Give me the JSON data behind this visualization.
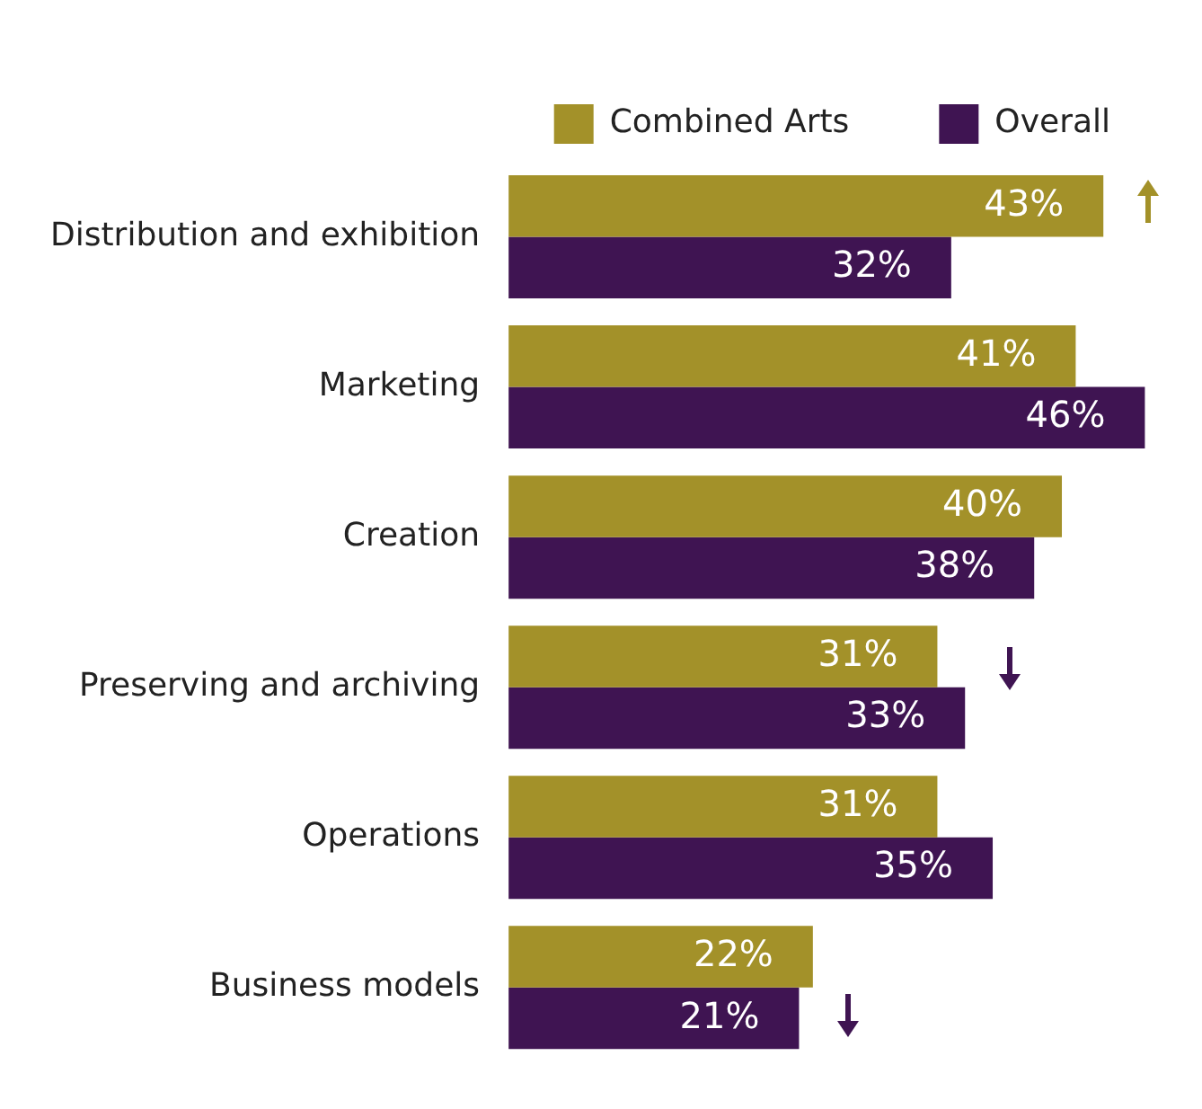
{
  "chart_data": {
    "type": "bar",
    "orientation": "horizontal",
    "categories": [
      "Distribution and exhibition",
      "Marketing",
      "Creation",
      "Preserving and archiving",
      "Operations",
      "Business models"
    ],
    "series": [
      {
        "name": "Combined Arts",
        "color": "#a39129",
        "values": [
          43,
          41,
          40,
          31,
          31,
          22
        ],
        "value_labels": [
          "43%",
          "41%",
          "40%",
          "31%",
          "31%",
          "22%"
        ]
      },
      {
        "name": "Overall",
        "color": "#3f1452",
        "values": [
          32,
          46,
          38,
          33,
          35,
          21
        ],
        "value_labels": [
          "32%",
          "46%",
          "38%",
          "33%",
          "35%",
          "21%"
        ]
      }
    ],
    "legend": "top right",
    "grid": false,
    "tick_labels": "y"
  }
}
